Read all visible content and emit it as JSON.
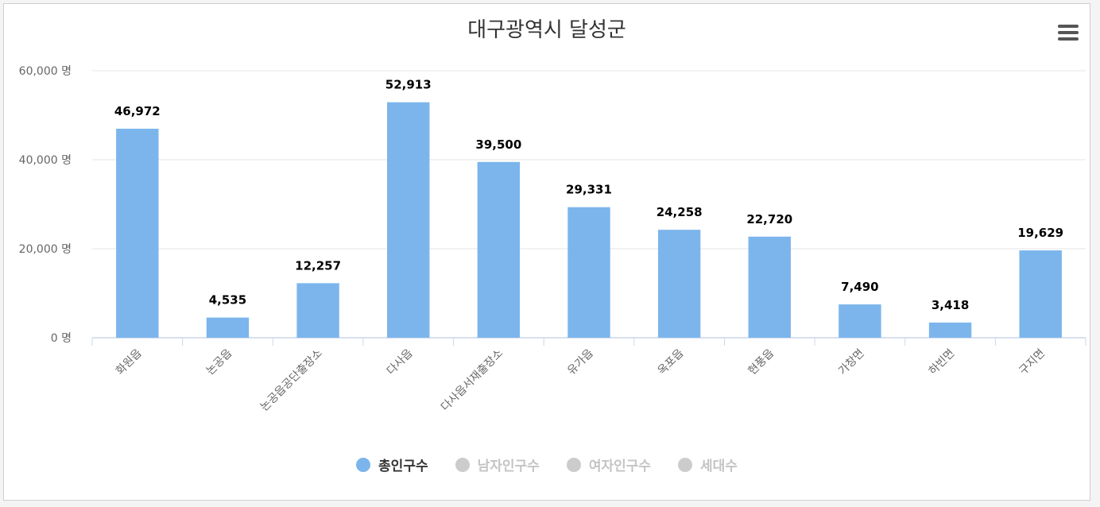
{
  "chart_data": {
    "type": "bar",
    "title": "대구광역시 달성군",
    "categories": [
      "화원읍",
      "논공읍",
      "논공읍공단출장소",
      "다사읍",
      "다사읍서재출장소",
      "유가읍",
      "옥포읍",
      "현풍읍",
      "가창면",
      "하빈면",
      "구지면"
    ],
    "series": [
      {
        "name": "총인구수",
        "values": [
          46972,
          4535,
          12257,
          52913,
          39500,
          29331,
          24258,
          22720,
          7490,
          3418,
          19629
        ],
        "data_labels": [
          "46,972",
          "4,535",
          "12,257",
          "52,913",
          "39,500",
          "29,331",
          "24,258",
          "22,720",
          "7,490",
          "3,418",
          "19,629"
        ],
        "color": "#7cb5ec",
        "visible": true
      },
      {
        "name": "남자인구수",
        "visible": false
      },
      {
        "name": "여자인구수",
        "visible": false
      },
      {
        "name": "세대수",
        "visible": false
      }
    ],
    "ylim": [
      0,
      60000
    ],
    "yticks": [
      0,
      20000,
      40000,
      60000
    ],
    "ytick_labels": [
      "0 명",
      "20,000 명",
      "40,000 명",
      "60,000 명"
    ],
    "xlabel": "",
    "ylabel": "",
    "grid": true,
    "legend_position": "bottom-center"
  },
  "colors": {
    "bar": "#7cb5ec",
    "grid": "#e6e6e6",
    "axis": "#ccd6eb",
    "tick_text": "#666666",
    "legend_hidden": "#cccccc"
  },
  "menu_icon": "hamburger-menu-icon"
}
